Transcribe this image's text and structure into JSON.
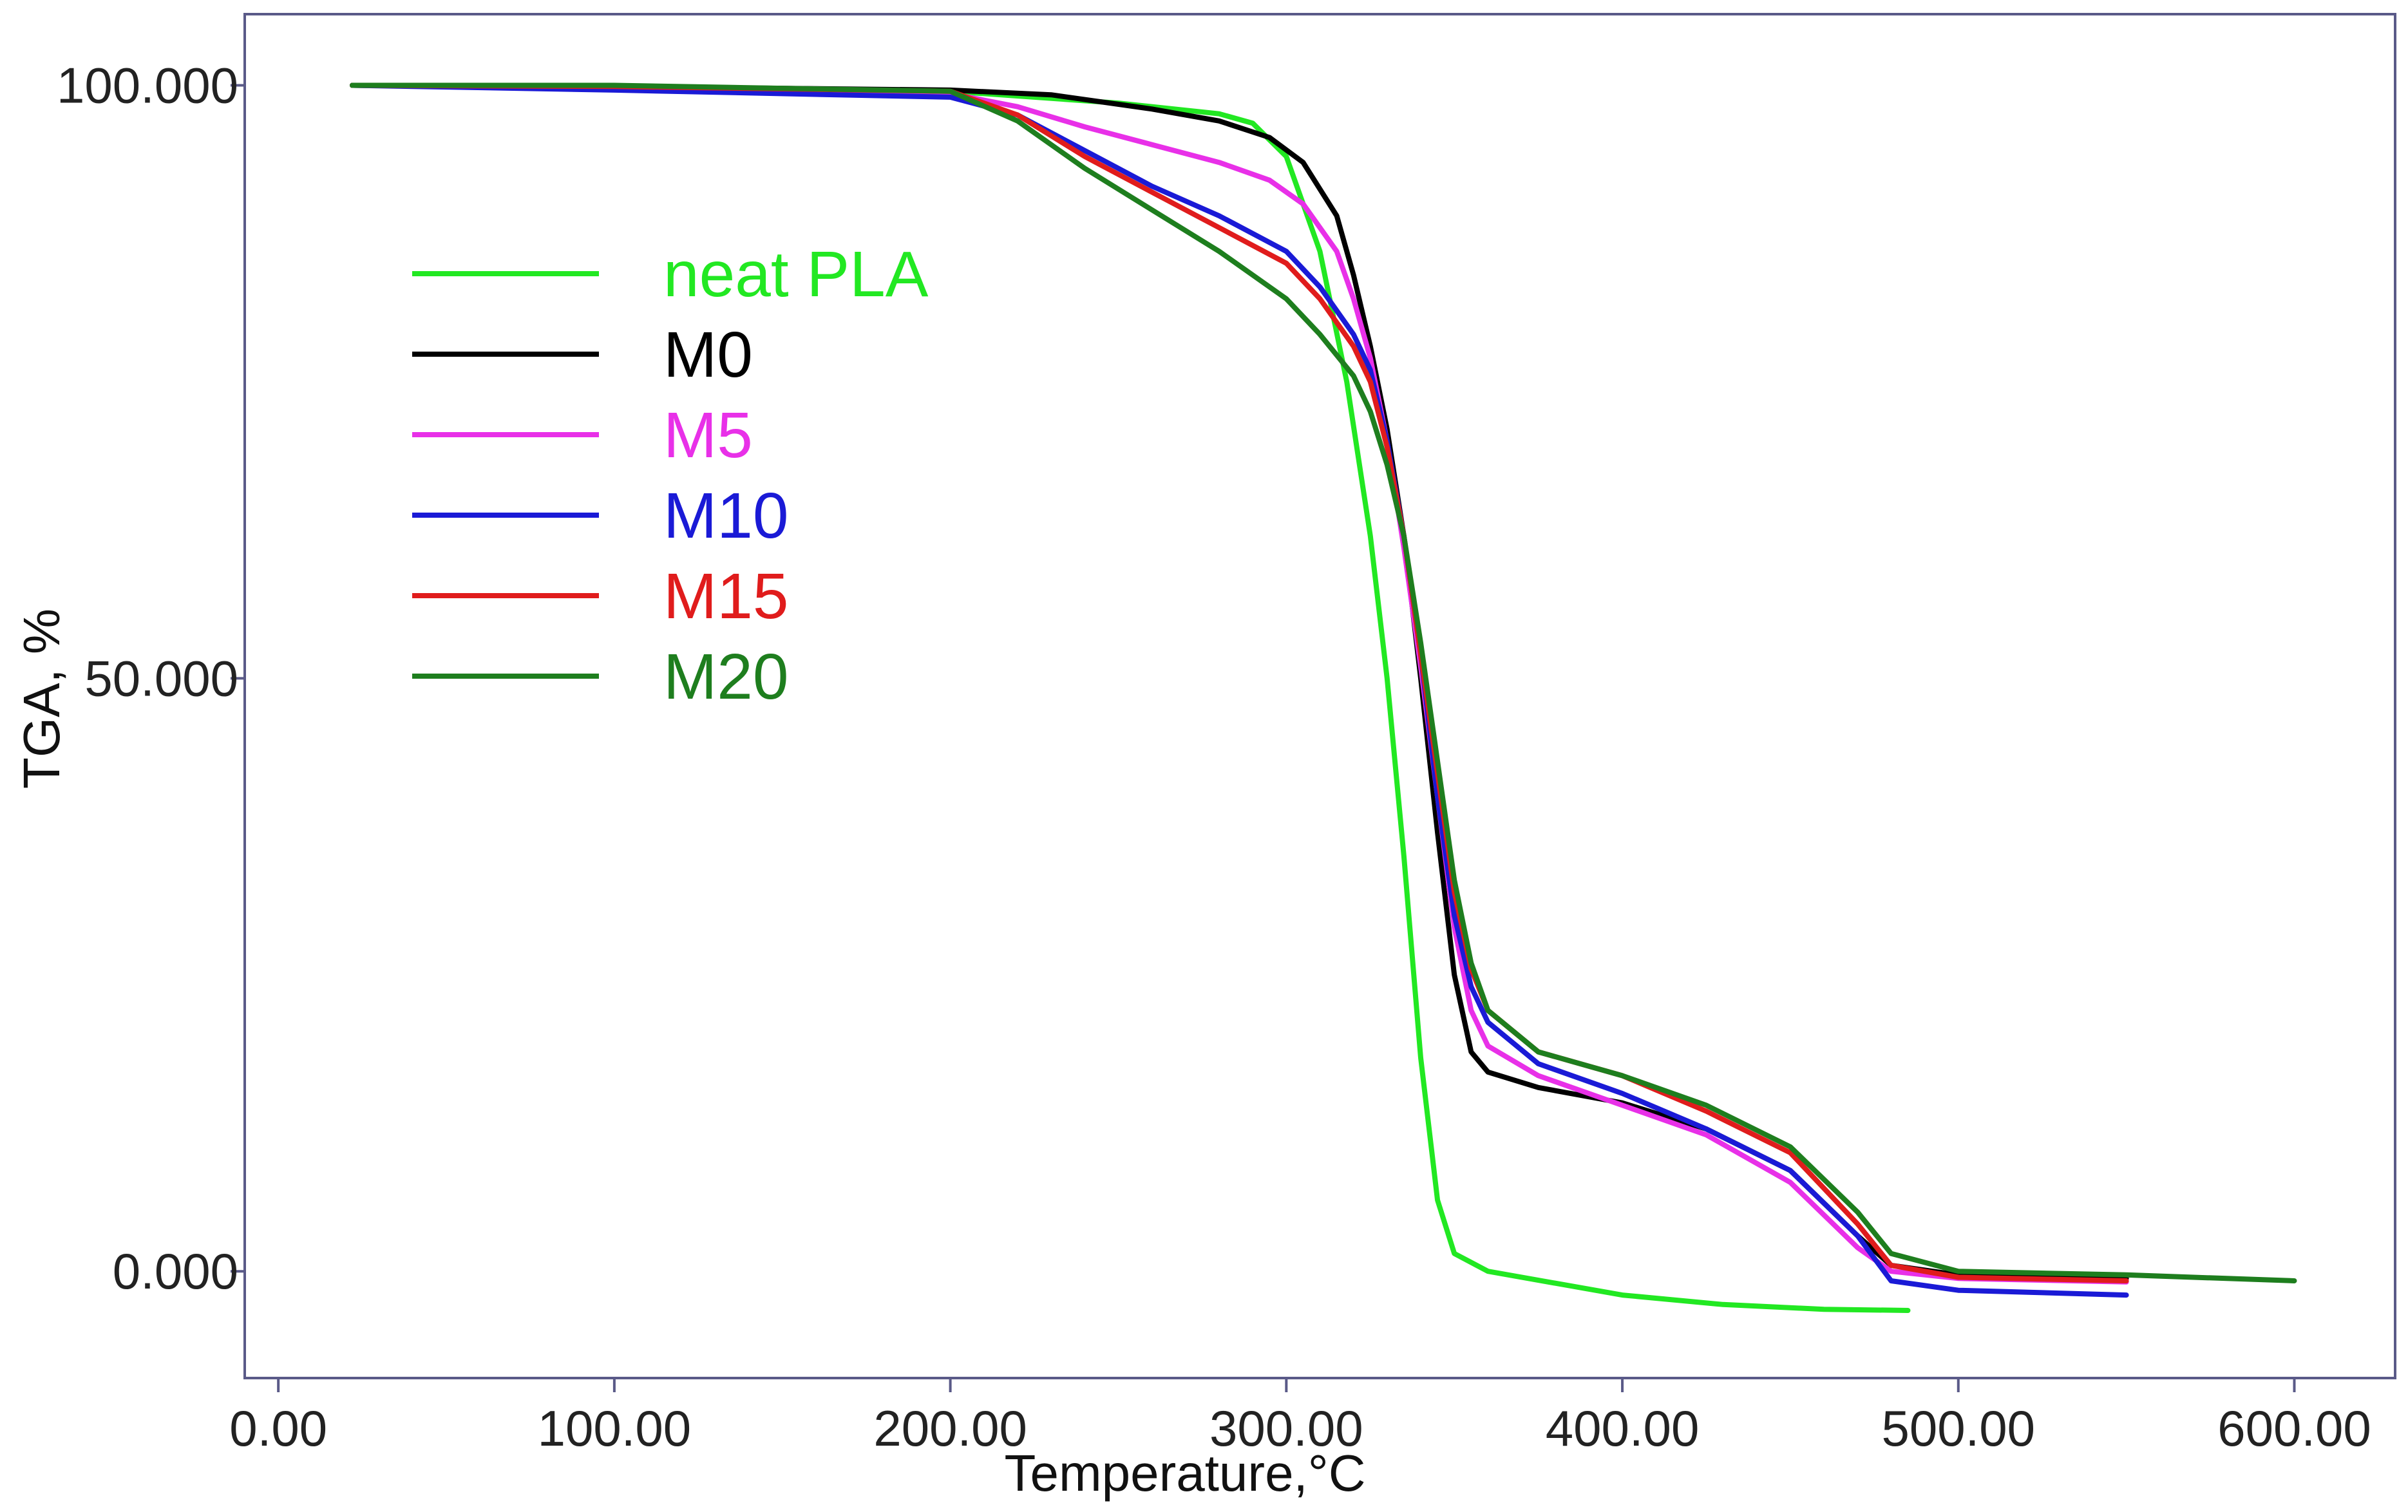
{
  "chart_data": {
    "type": "line",
    "title": "",
    "xlabel": "Temperature,°C",
    "ylabel": "TGA, %",
    "xlim": [
      -10,
      630
    ],
    "ylim": [
      -9,
      106
    ],
    "x_ticks": [
      0,
      100,
      200,
      300,
      400,
      500,
      600
    ],
    "x_tick_labels": [
      "0.00",
      "100.00",
      "200.00",
      "300.00",
      "400.00",
      "500.00",
      "600.00"
    ],
    "y_ticks": [
      0,
      50,
      100
    ],
    "y_tick_labels": [
      "0.000",
      "50.000",
      "100.000"
    ],
    "grid": false,
    "legend_position": "upper-left",
    "series": [
      {
        "name": "neat PLA",
        "color": "#22e822",
        "points": [
          [
            22,
            100
          ],
          [
            100,
            99.8
          ],
          [
            200,
            99.5
          ],
          [
            250,
            98.5
          ],
          [
            280,
            97.6
          ],
          [
            290,
            96.8
          ],
          [
            300,
            94
          ],
          [
            310,
            86
          ],
          [
            318,
            75
          ],
          [
            325,
            62
          ],
          [
            330,
            50
          ],
          [
            335,
            35
          ],
          [
            340,
            18
          ],
          [
            345,
            6
          ],
          [
            350,
            1.5
          ],
          [
            360,
            0
          ],
          [
            400,
            -2
          ],
          [
            430,
            -2.8
          ],
          [
            460,
            -3.2
          ],
          [
            485,
            -3.3
          ]
        ]
      },
      {
        "name": "M0",
        "color": "#000000",
        "points": [
          [
            22,
            100
          ],
          [
            100,
            99.9
          ],
          [
            200,
            99.6
          ],
          [
            230,
            99.2
          ],
          [
            260,
            98
          ],
          [
            280,
            97
          ],
          [
            295,
            95.6
          ],
          [
            305,
            93.5
          ],
          [
            315,
            89
          ],
          [
            320,
            84
          ],
          [
            325,
            78
          ],
          [
            330,
            71
          ],
          [
            335,
            62
          ],
          [
            340,
            50
          ],
          [
            345,
            37
          ],
          [
            350,
            25
          ],
          [
            355,
            18.5
          ],
          [
            360,
            16.8
          ],
          [
            375,
            15.5
          ],
          [
            400,
            14.2
          ],
          [
            425,
            12
          ],
          [
            450,
            8.5
          ],
          [
            470,
            3
          ],
          [
            480,
            0.5
          ],
          [
            500,
            -0.3
          ],
          [
            550,
            -0.6
          ]
        ]
      },
      {
        "name": "M5",
        "color": "#e830e8",
        "points": [
          [
            22,
            100
          ],
          [
            100,
            99.8
          ],
          [
            200,
            99.3
          ],
          [
            220,
            98.2
          ],
          [
            240,
            96.5
          ],
          [
            260,
            95
          ],
          [
            280,
            93.5
          ],
          [
            295,
            92
          ],
          [
            305,
            90
          ],
          [
            315,
            86
          ],
          [
            320,
            82
          ],
          [
            325,
            77
          ],
          [
            330,
            70
          ],
          [
            335,
            61
          ],
          [
            340,
            51
          ],
          [
            345,
            40
          ],
          [
            350,
            29
          ],
          [
            355,
            22
          ],
          [
            360,
            19
          ],
          [
            375,
            16.5
          ],
          [
            400,
            14
          ],
          [
            425,
            11.5
          ],
          [
            450,
            7.5
          ],
          [
            470,
            2
          ],
          [
            480,
            0
          ],
          [
            500,
            -0.6
          ],
          [
            550,
            -0.9
          ]
        ]
      },
      {
        "name": "M10",
        "color": "#1a1ad6",
        "points": [
          [
            22,
            100
          ],
          [
            100,
            99.6
          ],
          [
            200,
            99
          ],
          [
            220,
            97.5
          ],
          [
            240,
            94.5
          ],
          [
            260,
            91.5
          ],
          [
            280,
            89
          ],
          [
            300,
            86
          ],
          [
            310,
            83
          ],
          [
            320,
            79
          ],
          [
            325,
            76
          ],
          [
            330,
            70
          ],
          [
            335,
            62
          ],
          [
            340,
            52
          ],
          [
            345,
            40
          ],
          [
            350,
            30
          ],
          [
            355,
            24
          ],
          [
            360,
            21
          ],
          [
            375,
            17.5
          ],
          [
            400,
            15
          ],
          [
            425,
            12
          ],
          [
            450,
            8.5
          ],
          [
            470,
            3
          ],
          [
            480,
            -0.8
          ],
          [
            500,
            -1.6
          ],
          [
            550,
            -2
          ]
        ]
      },
      {
        "name": "M15",
        "color": "#e01c1c",
        "points": [
          [
            22,
            100
          ],
          [
            100,
            99.9
          ],
          [
            200,
            99.5
          ],
          [
            220,
            97.5
          ],
          [
            240,
            94
          ],
          [
            260,
            91
          ],
          [
            280,
            88
          ],
          [
            300,
            85
          ],
          [
            310,
            82
          ],
          [
            320,
            78
          ],
          [
            325,
            75
          ],
          [
            330,
            69.5
          ],
          [
            335,
            62
          ],
          [
            340,
            52
          ],
          [
            345,
            42
          ],
          [
            350,
            32
          ],
          [
            355,
            25.5
          ],
          [
            360,
            22
          ],
          [
            375,
            18.5
          ],
          [
            400,
            16.5
          ],
          [
            425,
            13.5
          ],
          [
            450,
            10
          ],
          [
            470,
            4
          ],
          [
            480,
            0.5
          ],
          [
            500,
            -0.5
          ],
          [
            550,
            -0.8
          ]
        ]
      },
      {
        "name": "M20",
        "color": "#1e7e1e",
        "points": [
          [
            22,
            100
          ],
          [
            100,
            100
          ],
          [
            200,
            99.5
          ],
          [
            220,
            97
          ],
          [
            240,
            93
          ],
          [
            260,
            89.5
          ],
          [
            280,
            86
          ],
          [
            300,
            82
          ],
          [
            310,
            79
          ],
          [
            320,
            75.5
          ],
          [
            325,
            72.5
          ],
          [
            330,
            68
          ],
          [
            335,
            62
          ],
          [
            340,
            53
          ],
          [
            345,
            43
          ],
          [
            350,
            33
          ],
          [
            355,
            26
          ],
          [
            360,
            22
          ],
          [
            375,
            18.5
          ],
          [
            400,
            16.5
          ],
          [
            425,
            14
          ],
          [
            450,
            10.5
          ],
          [
            470,
            5
          ],
          [
            480,
            1.5
          ],
          [
            500,
            0
          ],
          [
            550,
            -0.3
          ],
          [
            600,
            -0.8
          ]
        ]
      }
    ]
  }
}
